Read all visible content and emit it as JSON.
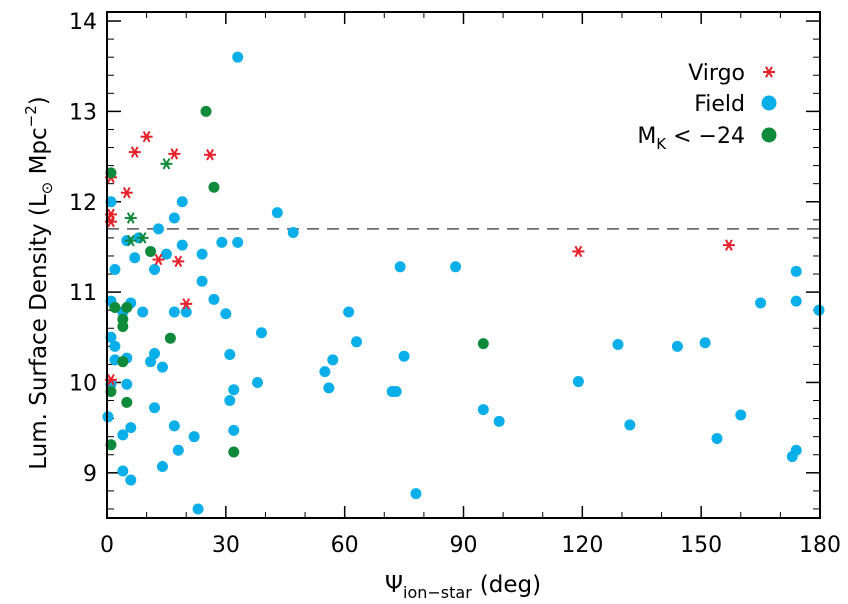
{
  "chart_data": {
    "type": "scatter",
    "xlabel": {
      "symbol": "Ψ",
      "sub": "ion−star",
      "unit": "(deg)"
    },
    "ylabel": {
      "pre": "Lum. Surface Density (L",
      "sub": "⊙",
      "mid": " Mpc",
      "sup": "−2",
      "post": ")"
    },
    "xlim": [
      0,
      180
    ],
    "ylim": [
      8.5,
      14.1
    ],
    "xticks": [
      0,
      30,
      60,
      90,
      120,
      150,
      180
    ],
    "yticks": [
      9,
      10,
      11,
      12,
      13,
      14
    ],
    "xtick_labels": [
      "0",
      "30",
      "60",
      "90",
      "120",
      "150",
      "180"
    ],
    "ytick_labels": [
      "9",
      "10",
      "11",
      "12",
      "13",
      "14"
    ],
    "grid": false,
    "reference_line": {
      "y": 11.7,
      "style": "dashed"
    },
    "legend_placement": "top-right",
    "legend": [
      {
        "label": "Virgo",
        "marker": "asterisk",
        "color": "#e8202a"
      },
      {
        "label": "Field",
        "marker": "circle",
        "color": "#0aaee8"
      },
      {
        "label_main": "M",
        "label_sub": "K",
        "label_rest": " < −24",
        "marker": "circle",
        "color": "#0f8a3a"
      }
    ],
    "series": [
      {
        "name": "Field",
        "marker": "circle",
        "color": "#0aaee8",
        "points": [
          [
            33,
            13.6
          ],
          [
            1,
            12.0
          ],
          [
            19,
            12.0
          ],
          [
            43,
            11.88
          ],
          [
            47,
            11.66
          ],
          [
            17,
            11.82
          ],
          [
            13,
            11.7
          ],
          [
            8,
            11.6
          ],
          [
            2,
            11.25
          ],
          [
            5,
            11.57
          ],
          [
            7,
            11.38
          ],
          [
            15,
            11.42
          ],
          [
            19,
            11.52
          ],
          [
            24,
            11.42
          ],
          [
            29,
            11.55
          ],
          [
            33,
            11.55
          ],
          [
            12,
            11.25
          ],
          [
            24,
            11.12
          ],
          [
            1,
            10.9
          ],
          [
            6,
            10.88
          ],
          [
            4,
            10.78
          ],
          [
            9,
            10.78
          ],
          [
            17,
            10.78
          ],
          [
            20,
            10.78
          ],
          [
            27,
            10.92
          ],
          [
            30,
            10.76
          ],
          [
            1,
            10.5
          ],
          [
            2,
            10.4
          ],
          [
            2,
            10.25
          ],
          [
            5,
            10.27
          ],
          [
            11,
            10.23
          ],
          [
            12,
            10.32
          ],
          [
            31,
            10.31
          ],
          [
            39,
            10.55
          ],
          [
            61,
            10.78
          ],
          [
            63,
            10.45
          ],
          [
            74,
            11.28
          ],
          [
            88,
            11.28
          ],
          [
            57,
            10.25
          ],
          [
            55,
            10.12
          ],
          [
            75,
            10.29
          ],
          [
            1,
            9.98
          ],
          [
            5,
            9.98
          ],
          [
            14,
            10.17
          ],
          [
            31,
            9.8
          ],
          [
            32,
            9.92
          ],
          [
            38,
            10.0
          ],
          [
            56,
            9.94
          ],
          [
            72,
            9.9
          ],
          [
            73,
            9.9
          ],
          [
            95,
            9.7
          ],
          [
            99,
            9.57
          ],
          [
            119,
            10.01
          ],
          [
            129,
            10.42
          ],
          [
            132,
            9.53
          ],
          [
            144,
            10.4
          ],
          [
            151,
            10.44
          ],
          [
            154,
            9.38
          ],
          [
            160,
            9.64
          ],
          [
            165,
            10.88
          ],
          [
            174,
            11.23
          ],
          [
            174,
            10.9
          ],
          [
            180,
            10.8
          ],
          [
            174,
            9.25
          ],
          [
            173,
            9.18
          ],
          [
            0,
            9.62
          ],
          [
            4,
            9.42
          ],
          [
            6,
            9.5
          ],
          [
            12,
            9.72
          ],
          [
            17,
            9.52
          ],
          [
            18,
            9.25
          ],
          [
            22,
            9.4
          ],
          [
            32,
            9.47
          ],
          [
            4,
            9.02
          ],
          [
            6,
            8.92
          ],
          [
            14,
            9.07
          ],
          [
            23,
            8.6
          ],
          [
            78,
            8.77
          ]
        ]
      },
      {
        "name": "Virgo",
        "marker": "asterisk",
        "color": "#e8202a",
        "points": [
          [
            10,
            12.72
          ],
          [
            7,
            12.55
          ],
          [
            17,
            12.53
          ],
          [
            26,
            12.52
          ],
          [
            1,
            12.27
          ],
          [
            5,
            12.1
          ],
          [
            1,
            11.86
          ],
          [
            1,
            11.78
          ],
          [
            13,
            11.36
          ],
          [
            18,
            11.34
          ],
          [
            20,
            10.87
          ],
          [
            1,
            10.03
          ],
          [
            119,
            11.45
          ],
          [
            157,
            11.52
          ]
        ]
      },
      {
        "name": "M_K < -24",
        "marker": "mixed",
        "color": "#0f8a3a",
        "points": [
          [
            25,
            13.0
          ],
          [
            1,
            12.32
          ],
          [
            27,
            12.16
          ],
          [
            15,
            12.42,
            "asterisk"
          ],
          [
            6,
            11.82,
            "asterisk"
          ],
          [
            9,
            11.6,
            "asterisk"
          ],
          [
            6,
            11.57,
            "asterisk"
          ],
          [
            11,
            11.45
          ],
          [
            2,
            10.83
          ],
          [
            5,
            10.83
          ],
          [
            4,
            10.7
          ],
          [
            4,
            10.62
          ],
          [
            16,
            10.49
          ],
          [
            4,
            10.23
          ],
          [
            1,
            9.9
          ],
          [
            5,
            9.78
          ],
          [
            1,
            9.31
          ],
          [
            32,
            9.23
          ],
          [
            95,
            10.43
          ]
        ]
      }
    ]
  }
}
